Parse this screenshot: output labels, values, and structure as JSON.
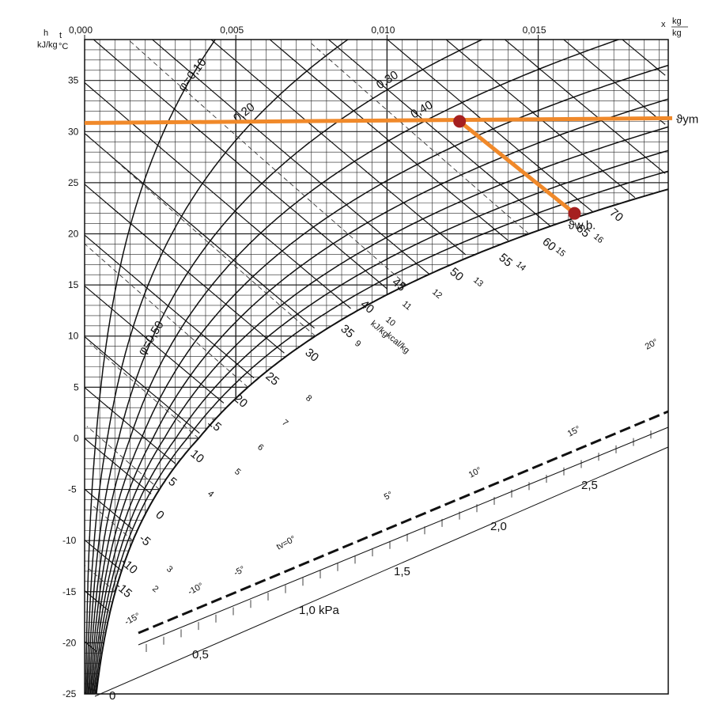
{
  "chart_data": {
    "type": "psychrometric",
    "x_axis": {
      "unit_top": "x",
      "unit_num": "kg",
      "unit_den": "kg",
      "ticks": [
        {
          "value": 0.0,
          "label": "0,000"
        },
        {
          "value": 0.005,
          "label": "0,005"
        },
        {
          "value": 0.01,
          "label": "0,010"
        },
        {
          "value": 0.015,
          "label": "0,015"
        }
      ],
      "xlim": [
        0,
        0.0193
      ]
    },
    "y_axis": {
      "label_h": "h",
      "label_unit": "kJ/kg",
      "label_t": "t",
      "label_c": "°C",
      "ticks": [
        35,
        30,
        25,
        20,
        15,
        10,
        5,
        0,
        -5,
        -10,
        -15,
        -20,
        -25
      ],
      "ylim": [
        -25,
        39
      ]
    },
    "relative_humidity_curves": [
      {
        "phi": 0.1,
        "label": "φ=0,10"
      },
      {
        "phi": 0.2,
        "label": "0,20"
      },
      {
        "phi": 0.3,
        "label": "0,30"
      },
      {
        "phi": 0.4,
        "label": "0,40"
      },
      {
        "phi": 0.5,
        "label": "φ=0,50"
      },
      {
        "phi": 0.6,
        "label": ""
      },
      {
        "phi": 0.7,
        "label": ""
      },
      {
        "phi": 0.8,
        "label": ""
      },
      {
        "phi": 0.9,
        "label": ""
      },
      {
        "phi": 1.0,
        "label": ""
      }
    ],
    "enthalpy_kj_labels": [
      "-15",
      "-10",
      "-5",
      "0",
      "5",
      "10",
      "15",
      "20",
      "25",
      "30",
      "35",
      "40",
      "45",
      "50",
      "55",
      "60",
      "65",
      "70"
    ],
    "enthalpy_kcal_labels": [
      "2",
      "3",
      "4",
      "5",
      "6",
      "7",
      "8",
      "9",
      "10",
      "11",
      "12",
      "13",
      "14",
      "15",
      "16"
    ],
    "enthalpy_text": "kJ/kg",
    "enthalpy_kcal_text": "kcal/kg",
    "wet_bulb_labels": [
      "-15°",
      "-10°",
      "-5°",
      "tv=0°",
      "5°",
      "10°",
      "15°",
      "20°"
    ],
    "pressure_labels": [
      "0,5",
      "1,0 kPa",
      "1,5",
      "2,0",
      "2,5"
    ],
    "origin_label": "0",
    "process": {
      "color": "#f0892a",
      "marker_color": "#a52020",
      "dry_bulb_line_t": 31.0,
      "dry_bulb_label": "ϑym",
      "point_start": {
        "x": 0.0124,
        "t": 31.0
      },
      "point_end": {
        "x": 0.0162,
        "t": 22.0
      },
      "end_label": "ϑw.b."
    }
  }
}
